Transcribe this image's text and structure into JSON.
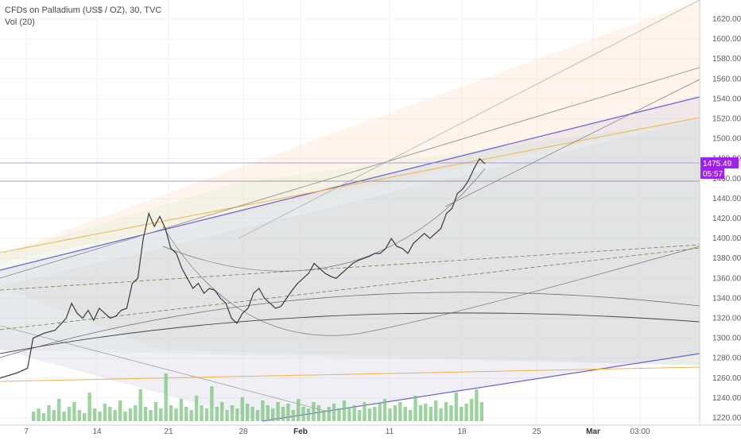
{
  "header": {
    "title": "CFDs on Palladium (US$ / OZ), 30, TVC",
    "indicator": "Vol (20)"
  },
  "colors": {
    "price_line": "#3a3a3a",
    "volume_bar": "#7bc47f",
    "price_tag_bg": "#a020f0",
    "grid": "#f0f0f0",
    "axis_text": "#5c5c5c"
  },
  "price_axis": {
    "ticks": [
      "1620.00",
      "1600.00",
      "1580.00",
      "1560.00",
      "1540.00",
      "1520.00",
      "1500.00",
      "1480.00",
      "1460.00",
      "1440.00",
      "1420.00",
      "1400.00",
      "1380.00",
      "1360.00",
      "1340.00",
      "1320.00",
      "1300.00",
      "1280.00",
      "1260.00",
      "1240.00",
      "1220.00"
    ],
    "last_price": "1475.49",
    "countdown": "05:57"
  },
  "time_axis": {
    "ticks": [
      {
        "label": "7",
        "bold": false
      },
      {
        "label": "14",
        "bold": false
      },
      {
        "label": "21",
        "bold": false
      },
      {
        "label": "28",
        "bold": false
      },
      {
        "label": "Feb",
        "bold": true
      },
      {
        "label": "11",
        "bold": false
      },
      {
        "label": "18",
        "bold": false
      },
      {
        "label": "25",
        "bold": false
      },
      {
        "label": "Mar",
        "bold": true
      },
      {
        "label": "03:00",
        "bold": false
      }
    ]
  },
  "chart_data": {
    "type": "line",
    "title": "CFDs on Palladium (US$ / OZ), 30, TVC",
    "ylim": [
      1220,
      1630
    ],
    "series": [
      {
        "name": "CFDs on Palladium (US$ / OZ), 30, TVC",
        "points": [
          [
            0,
            1260
          ],
          [
            3,
            1265
          ],
          [
            5,
            1270
          ],
          [
            6,
            1300
          ],
          [
            8,
            1305
          ],
          [
            10,
            1308
          ],
          [
            12,
            1320
          ],
          [
            13,
            1335
          ],
          [
            14,
            1325
          ],
          [
            15,
            1320
          ],
          [
            16,
            1328
          ],
          [
            17,
            1318
          ],
          [
            18,
            1330
          ],
          [
            19,
            1325
          ],
          [
            20,
            1320
          ],
          [
            21,
            1322
          ],
          [
            22,
            1328
          ],
          [
            23,
            1330
          ],
          [
            24,
            1355
          ],
          [
            25,
            1360
          ],
          [
            26,
            1400
          ],
          [
            27,
            1425
          ],
          [
            28,
            1412
          ],
          [
            29,
            1422
          ],
          [
            30,
            1410
          ],
          [
            31,
            1390
          ],
          [
            32,
            1385
          ],
          [
            33,
            1370
          ],
          [
            34,
            1360
          ],
          [
            35,
            1350
          ],
          [
            36,
            1355
          ],
          [
            37,
            1345
          ],
          [
            38,
            1350
          ],
          [
            39,
            1348
          ],
          [
            40,
            1340
          ],
          [
            41,
            1335
          ],
          [
            42,
            1320
          ],
          [
            43,
            1315
          ],
          [
            44,
            1325
          ],
          [
            45,
            1330
          ],
          [
            46,
            1345
          ],
          [
            47,
            1350
          ],
          [
            48,
            1340
          ],
          [
            49,
            1335
          ],
          [
            50,
            1330
          ],
          [
            51,
            1332
          ],
          [
            52,
            1340
          ],
          [
            53,
            1348
          ],
          [
            54,
            1355
          ],
          [
            55,
            1360
          ],
          [
            56,
            1365
          ],
          [
            57,
            1375
          ],
          [
            58,
            1370
          ],
          [
            59,
            1365
          ],
          [
            60,
            1362
          ],
          [
            61,
            1360
          ],
          [
            62,
            1365
          ],
          [
            63,
            1370
          ],
          [
            64,
            1375
          ],
          [
            65,
            1378
          ],
          [
            66,
            1380
          ],
          [
            67,
            1382
          ],
          [
            68,
            1385
          ],
          [
            69,
            1385
          ],
          [
            70,
            1390
          ],
          [
            71,
            1400
          ],
          [
            72,
            1392
          ],
          [
            73,
            1390
          ],
          [
            74,
            1385
          ],
          [
            75,
            1395
          ],
          [
            76,
            1400
          ],
          [
            77,
            1405
          ],
          [
            78,
            1400
          ],
          [
            79,
            1405
          ],
          [
            80,
            1410
          ],
          [
            81,
            1425
          ],
          [
            82,
            1430
          ],
          [
            83,
            1445
          ],
          [
            84,
            1450
          ],
          [
            85,
            1458
          ],
          [
            86,
            1470
          ],
          [
            87,
            1480
          ],
          [
            88,
            1475
          ]
        ]
      },
      {
        "name": "Vol (20)",
        "values": [
          6,
          8,
          5,
          10,
          7,
          14,
          6,
          9,
          12,
          7,
          5,
          18,
          8,
          6,
          11,
          9,
          7,
          13,
          6,
          8,
          10,
          20,
          9,
          7,
          12,
          8,
          30,
          10,
          8,
          14,
          9,
          7,
          16,
          10,
          8,
          22,
          9,
          12,
          7,
          10,
          8,
          15,
          11,
          9,
          7,
          13,
          10,
          8,
          12,
          9,
          11,
          7,
          14,
          9,
          8,
          12,
          10,
          7,
          9,
          11,
          8,
          13,
          9,
          10,
          7,
          12,
          8,
          9,
          11,
          14,
          8,
          10,
          12,
          9,
          7,
          16,
          10,
          11,
          9,
          13,
          8,
          12,
          10,
          18,
          9,
          11,
          14,
          20,
          12
        ]
      }
    ],
    "drawings": "multiple trendlines, curved arcs and shaded fan regions overlaid on price"
  }
}
